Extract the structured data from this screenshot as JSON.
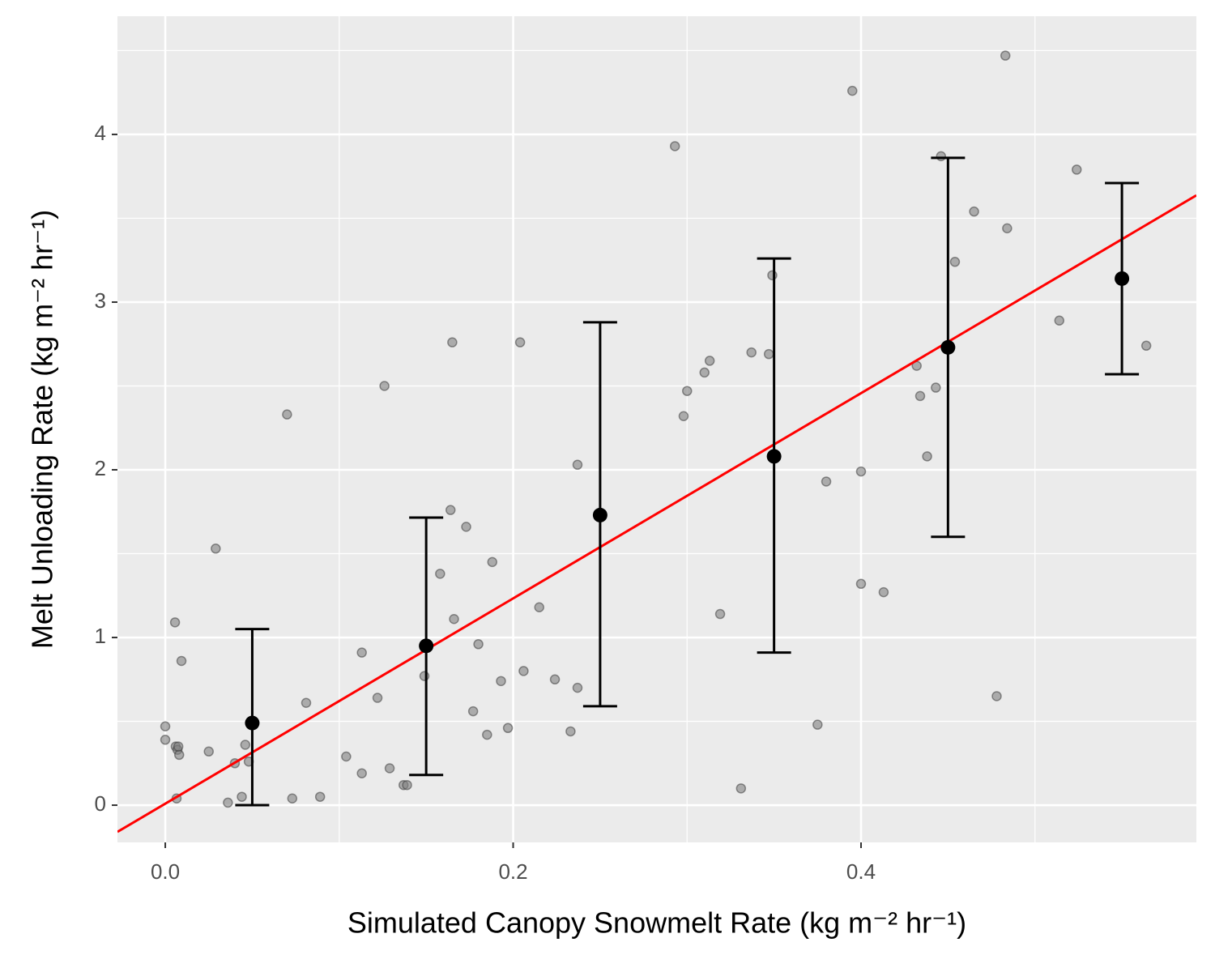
{
  "chart_data": {
    "type": "scatter",
    "x_label": "Simulated Canopy Snowmelt Rate (kg m⁻² hr⁻¹)",
    "y_label": "Melt Unloading Rate (kg m⁻² hr⁻¹)",
    "xlim": [
      -0.0275,
      0.5928
    ],
    "ylim": [
      -0.222,
      4.705
    ],
    "xticks": [
      {
        "value": 0,
        "label": "0.0"
      },
      {
        "value": 0.2,
        "label": "0.2"
      },
      {
        "value": 0.4,
        "label": "0.4"
      }
    ],
    "yticks": [
      0,
      1,
      2,
      3,
      4
    ],
    "xminor_ticks": [
      0.1,
      0.3,
      0.5
    ],
    "yminor_ticks": [
      0.5,
      1.5,
      2.5,
      3.5,
      4.5
    ],
    "grid": true,
    "points": {
      "color": "#808080",
      "x": [
        0.0,
        0.0,
        0.0056,
        0.0093,
        0.006,
        0.007,
        0.008,
        0.0075,
        0.0065,
        0.025,
        0.029,
        0.036,
        0.04,
        0.044,
        0.046,
        0.048,
        0.07,
        0.073,
        0.081,
        0.089,
        0.104,
        0.113,
        0.113,
        0.122,
        0.126,
        0.129,
        0.137,
        0.139,
        0.149,
        0.158,
        0.164,
        0.165,
        0.166,
        0.173,
        0.177,
        0.18,
        0.185,
        0.188,
        0.193,
        0.197,
        0.204,
        0.206,
        0.215,
        0.224,
        0.233,
        0.237,
        0.237,
        0.293,
        0.298,
        0.3,
        0.31,
        0.313,
        0.319,
        0.331,
        0.337,
        0.347,
        0.349,
        0.375,
        0.38,
        0.395,
        0.4,
        0.4,
        0.413,
        0.432,
        0.434,
        0.438,
        0.443,
        0.446,
        0.454,
        0.465,
        0.478,
        0.483,
        0.484,
        0.514,
        0.524,
        0.564
      ],
      "y": [
        0.47,
        0.39,
        1.09,
        0.86,
        0.35,
        0.33,
        0.3,
        0.35,
        0.04,
        0.32,
        1.53,
        0.015,
        0.25,
        0.05,
        0.36,
        0.26,
        2.33,
        0.04,
        0.61,
        0.05,
        0.29,
        0.91,
        0.19,
        0.64,
        2.5,
        0.22,
        0.12,
        0.12,
        0.77,
        1.38,
        1.76,
        2.76,
        1.11,
        1.66,
        0.56,
        0.96,
        0.42,
        1.45,
        0.74,
        0.46,
        2.76,
        0.8,
        1.18,
        0.75,
        0.44,
        2.03,
        0.7,
        3.93,
        2.32,
        2.47,
        2.58,
        2.65,
        1.14,
        0.1,
        2.7,
        2.69,
        3.16,
        0.48,
        1.93,
        4.26,
        1.99,
        1.32,
        1.27,
        2.62,
        2.44,
        2.08,
        2.49,
        3.87,
        3.24,
        3.54,
        0.65,
        4.47,
        3.44,
        2.89,
        3.79,
        2.74
      ]
    },
    "bins": {
      "color": "#000000",
      "x": [
        0.05,
        0.15,
        0.25,
        0.35,
        0.45,
        0.55
      ],
      "values": [
        0.49,
        0.95,
        1.73,
        2.08,
        2.73,
        3.14
      ],
      "lower": [
        0,
        0.18,
        0.59,
        0.91,
        1.6,
        2.57
      ],
      "upper": [
        1.05,
        1.715,
        2.88,
        3.26,
        3.86,
        3.71
      ]
    },
    "fit": {
      "slope": 6.12,
      "intercept": 0.009,
      "color": "#ff0000"
    }
  }
}
